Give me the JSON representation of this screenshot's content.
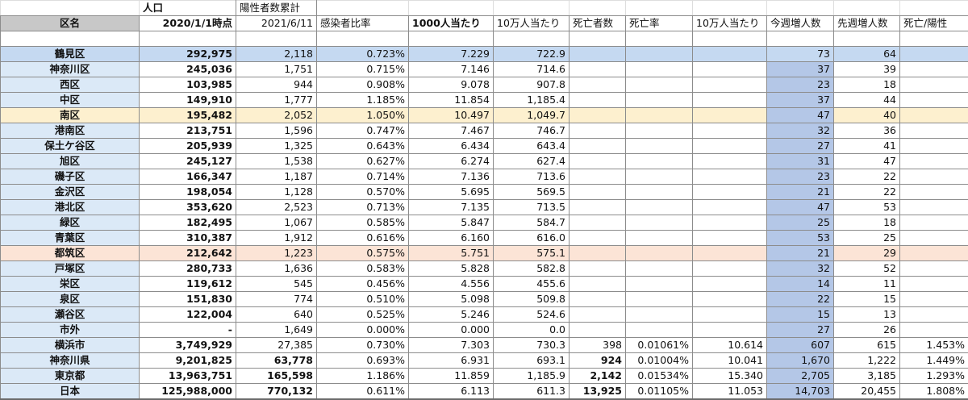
{
  "header": {
    "top": [
      "",
      "人口",
      "陽性者数累計",
      "",
      "",
      "",
      "",
      "",
      "",
      "",
      "",
      ""
    ],
    "columns": [
      "区名",
      "2020/1/1時点",
      "2021/6/11",
      "感染者比率",
      "1000人当たり",
      "10万人当たり",
      "死亡者数",
      "死亡率",
      "10万人当たり",
      "今週増人数",
      "先週増人数",
      "死亡/陽性"
    ]
  },
  "rows": [
    {
      "name": "鶴見区",
      "pop": "292,975",
      "pos": "2,118",
      "ratio": "0.723%",
      "per1000": "7.229",
      "per100k": "722.9",
      "deaths": "",
      "dr": "",
      "dper100k": "",
      "thisweek": "73",
      "lastweek": "64",
      "dpos": ""
    },
    {
      "name": "神奈川区",
      "pop": "245,036",
      "pos": "1,751",
      "ratio": "0.715%",
      "per1000": "7.146",
      "per100k": "714.6",
      "deaths": "",
      "dr": "",
      "dper100k": "",
      "thisweek": "37",
      "lastweek": "39",
      "dpos": ""
    },
    {
      "name": "西区",
      "pop": "103,985",
      "pos": "944",
      "ratio": "0.908%",
      "per1000": "9.078",
      "per100k": "907.8",
      "deaths": "",
      "dr": "",
      "dper100k": "",
      "thisweek": "23",
      "lastweek": "18",
      "dpos": ""
    },
    {
      "name": "中区",
      "pop": "149,910",
      "pos": "1,777",
      "ratio": "1.185%",
      "per1000": "11.854",
      "per100k": "1,185.4",
      "deaths": "",
      "dr": "",
      "dper100k": "",
      "thisweek": "37",
      "lastweek": "44",
      "dpos": ""
    },
    {
      "name": "南区",
      "pop": "195,482",
      "pos": "2,052",
      "ratio": "1.050%",
      "per1000": "10.497",
      "per100k": "1,049.7",
      "deaths": "",
      "dr": "",
      "dper100k": "",
      "thisweek": "47",
      "lastweek": "40",
      "dpos": ""
    },
    {
      "name": "港南区",
      "pop": "213,751",
      "pos": "1,596",
      "ratio": "0.747%",
      "per1000": "7.467",
      "per100k": "746.7",
      "deaths": "",
      "dr": "",
      "dper100k": "",
      "thisweek": "32",
      "lastweek": "36",
      "dpos": ""
    },
    {
      "name": "保土ケ谷区",
      "pop": "205,939",
      "pos": "1,325",
      "ratio": "0.643%",
      "per1000": "6.434",
      "per100k": "643.4",
      "deaths": "",
      "dr": "",
      "dper100k": "",
      "thisweek": "27",
      "lastweek": "41",
      "dpos": ""
    },
    {
      "name": "旭区",
      "pop": "245,127",
      "pos": "1,538",
      "ratio": "0.627%",
      "per1000": "6.274",
      "per100k": "627.4",
      "deaths": "",
      "dr": "",
      "dper100k": "",
      "thisweek": "31",
      "lastweek": "47",
      "dpos": ""
    },
    {
      "name": "磯子区",
      "pop": "166,347",
      "pos": "1,187",
      "ratio": "0.714%",
      "per1000": "7.136",
      "per100k": "713.6",
      "deaths": "",
      "dr": "",
      "dper100k": "",
      "thisweek": "23",
      "lastweek": "22",
      "dpos": ""
    },
    {
      "name": "金沢区",
      "pop": "198,054",
      "pos": "1,128",
      "ratio": "0.570%",
      "per1000": "5.695",
      "per100k": "569.5",
      "deaths": "",
      "dr": "",
      "dper100k": "",
      "thisweek": "21",
      "lastweek": "22",
      "dpos": ""
    },
    {
      "name": "港北区",
      "pop": "353,620",
      "pos": "2,523",
      "ratio": "0.713%",
      "per1000": "7.135",
      "per100k": "713.5",
      "deaths": "",
      "dr": "",
      "dper100k": "",
      "thisweek": "47",
      "lastweek": "53",
      "dpos": ""
    },
    {
      "name": "緑区",
      "pop": "182,495",
      "pos": "1,067",
      "ratio": "0.585%",
      "per1000": "5.847",
      "per100k": "584.7",
      "deaths": "",
      "dr": "",
      "dper100k": "",
      "thisweek": "25",
      "lastweek": "18",
      "dpos": ""
    },
    {
      "name": "青葉区",
      "pop": "310,387",
      "pos": "1,912",
      "ratio": "0.616%",
      "per1000": "6.160",
      "per100k": "616.0",
      "deaths": "",
      "dr": "",
      "dper100k": "",
      "thisweek": "53",
      "lastweek": "25",
      "dpos": ""
    },
    {
      "name": "都筑区",
      "pop": "212,642",
      "pos": "1,223",
      "ratio": "0.575%",
      "per1000": "5.751",
      "per100k": "575.1",
      "deaths": "",
      "dr": "",
      "dper100k": "",
      "thisweek": "21",
      "lastweek": "29",
      "dpos": ""
    },
    {
      "name": "戸塚区",
      "pop": "280,733",
      "pos": "1,636",
      "ratio": "0.583%",
      "per1000": "5.828",
      "per100k": "582.8",
      "deaths": "",
      "dr": "",
      "dper100k": "",
      "thisweek": "32",
      "lastweek": "52",
      "dpos": ""
    },
    {
      "name": "栄区",
      "pop": "119,612",
      "pos": "545",
      "ratio": "0.456%",
      "per1000": "4.556",
      "per100k": "455.6",
      "deaths": "",
      "dr": "",
      "dper100k": "",
      "thisweek": "14",
      "lastweek": "11",
      "dpos": ""
    },
    {
      "name": "泉区",
      "pop": "151,830",
      "pos": "774",
      "ratio": "0.510%",
      "per1000": "5.098",
      "per100k": "509.8",
      "deaths": "",
      "dr": "",
      "dper100k": "",
      "thisweek": "22",
      "lastweek": "15",
      "dpos": ""
    },
    {
      "name": "瀬谷区",
      "pop": "122,004",
      "pos": "640",
      "ratio": "0.525%",
      "per1000": "5.246",
      "per100k": "524.6",
      "deaths": "",
      "dr": "",
      "dper100k": "",
      "thisweek": "15",
      "lastweek": "13",
      "dpos": ""
    },
    {
      "name": "市外",
      "pop": "-",
      "pos": "1,649",
      "ratio": "0.000%",
      "per1000": "0.000",
      "per100k": "0.0",
      "deaths": "",
      "dr": "",
      "dper100k": "",
      "thisweek": "27",
      "lastweek": "26",
      "dpos": ""
    },
    {
      "name": "横浜市",
      "pop": "3,749,929",
      "pos": "27,385",
      "ratio": "0.730%",
      "per1000": "7.303",
      "per100k": "730.3",
      "deaths": "398",
      "dr": "0.01061%",
      "dper100k": "10.614",
      "thisweek": "607",
      "lastweek": "615",
      "dpos": "1.453%"
    },
    {
      "name": "神奈川県",
      "pop": "9,201,825",
      "pos": "63,778",
      "ratio": "0.693%",
      "per1000": "6.931",
      "per100k": "693.1",
      "deaths": "924",
      "dr": "0.01004%",
      "dper100k": "10.041",
      "thisweek": "1,670",
      "lastweek": "1,222",
      "dpos": "1.449%"
    },
    {
      "name": "東京都",
      "pop": "13,963,751",
      "pos": "165,598",
      "ratio": "1.186%",
      "per1000": "11.859",
      "per100k": "1,185.9",
      "deaths": "2,142",
      "dr": "0.01534%",
      "dper100k": "15.340",
      "thisweek": "2,705",
      "lastweek": "3,185",
      "dpos": "1.293%"
    },
    {
      "name": "日本",
      "pop": "125,988,000",
      "pos": "770,132",
      "ratio": "0.611%",
      "per1000": "6.113",
      "per100k": "611.3",
      "deaths": "13,925",
      "dr": "0.01105%",
      "dper100k": "11.053",
      "thisweek": "14,703",
      "lastweek": "20,455",
      "dpos": "1.808%"
    }
  ],
  "colors": {
    "name_bg": "#dbe9f7",
    "name_text": "#1f4e79",
    "header_name_bg": "#c8c8c8",
    "highlight_blue": "#c5d9f1",
    "highlight_yellow": "#fdf0cf",
    "highlight_pink": "#fce4d6",
    "this_week_bg": "#b4c7e7"
  }
}
